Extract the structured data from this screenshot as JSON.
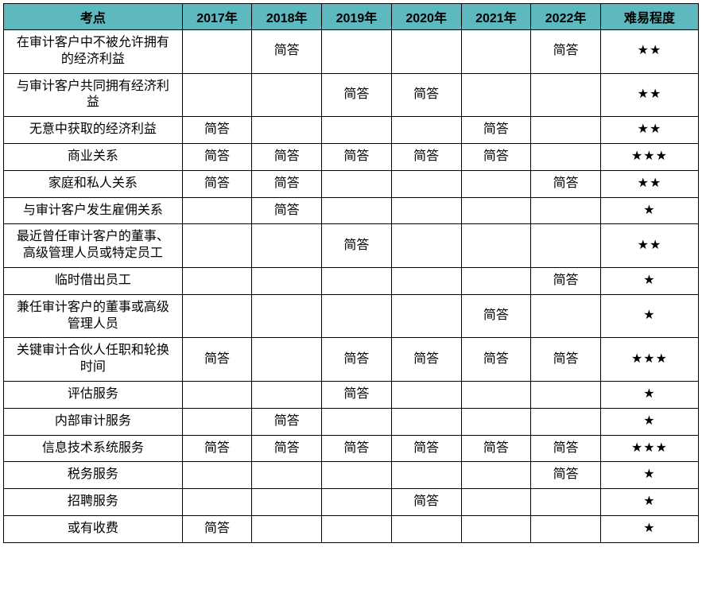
{
  "table": {
    "headers": [
      "考点",
      "2017年",
      "2018年",
      "2019年",
      "2020年",
      "2021年",
      "2022年",
      "难易程度"
    ],
    "star_char": "★",
    "answer_text": "简答",
    "rows": [
      {
        "topic": "在审计客户中不被允许拥有的经济利益",
        "y2017": "",
        "y2018": "简答",
        "y2019": "",
        "y2020": "",
        "y2021": "",
        "y2022": "简答",
        "stars": 2
      },
      {
        "topic": "与审计客户共同拥有经济利益",
        "y2017": "",
        "y2018": "",
        "y2019": "简答",
        "y2020": "简答",
        "y2021": "",
        "y2022": "",
        "stars": 2
      },
      {
        "topic": "无意中获取的经济利益",
        "y2017": "简答",
        "y2018": "",
        "y2019": "",
        "y2020": "",
        "y2021": "简答",
        "y2022": "",
        "stars": 2
      },
      {
        "topic": "商业关系",
        "y2017": "简答",
        "y2018": "简答",
        "y2019": "简答",
        "y2020": "简答",
        "y2021": "简答",
        "y2022": "",
        "stars": 3
      },
      {
        "topic": "家庭和私人关系",
        "y2017": "简答",
        "y2018": "简答",
        "y2019": "",
        "y2020": "",
        "y2021": "",
        "y2022": "简答",
        "stars": 2
      },
      {
        "topic": "与审计客户发生雇佣关系",
        "y2017": "",
        "y2018": "简答",
        "y2019": "",
        "y2020": "",
        "y2021": "",
        "y2022": "",
        "stars": 1
      },
      {
        "topic": "最近曾任审计客户的董事、高级管理人员或特定员工",
        "y2017": "",
        "y2018": "",
        "y2019": "简答",
        "y2020": "",
        "y2021": "",
        "y2022": "",
        "stars": 2
      },
      {
        "topic": "临时借出员工",
        "y2017": "",
        "y2018": "",
        "y2019": "",
        "y2020": "",
        "y2021": "",
        "y2022": "简答",
        "stars": 1
      },
      {
        "topic": "兼任审计客户的董事或高级管理人员",
        "y2017": "",
        "y2018": "",
        "y2019": "",
        "y2020": "",
        "y2021": "简答",
        "y2022": "",
        "stars": 1
      },
      {
        "topic": "关键审计合伙人任职和轮换时间",
        "y2017": "简答",
        "y2018": "",
        "y2019": "简答",
        "y2020": "简答",
        "y2021": "简答",
        "y2022": "简答",
        "stars": 3
      },
      {
        "topic": "评估服务",
        "y2017": "",
        "y2018": "",
        "y2019": "简答",
        "y2020": "",
        "y2021": "",
        "y2022": "",
        "stars": 1
      },
      {
        "topic": "内部审计服务",
        "y2017": "",
        "y2018": "简答",
        "y2019": "",
        "y2020": "",
        "y2021": "",
        "y2022": "",
        "stars": 1
      },
      {
        "topic": "信息技术系统服务",
        "y2017": "简答",
        "y2018": "简答",
        "y2019": "简答",
        "y2020": "简答",
        "y2021": "简答",
        "y2022": "简答",
        "stars": 3
      },
      {
        "topic": "税务服务",
        "y2017": "",
        "y2018": "",
        "y2019": "",
        "y2020": "",
        "y2021": "",
        "y2022": "简答",
        "stars": 1
      },
      {
        "topic": "招聘服务",
        "y2017": "",
        "y2018": "",
        "y2019": "",
        "y2020": "简答",
        "y2021": "",
        "y2022": "",
        "stars": 1
      },
      {
        "topic": "或有收费",
        "y2017": "简答",
        "y2018": "",
        "y2019": "",
        "y2020": "",
        "y2021": "",
        "y2022": "",
        "stars": 1
      }
    ]
  },
  "colors": {
    "header_bg": "#5eb8c0",
    "border": "#000000",
    "cell_bg": "#ffffff",
    "text": "#000000"
  }
}
